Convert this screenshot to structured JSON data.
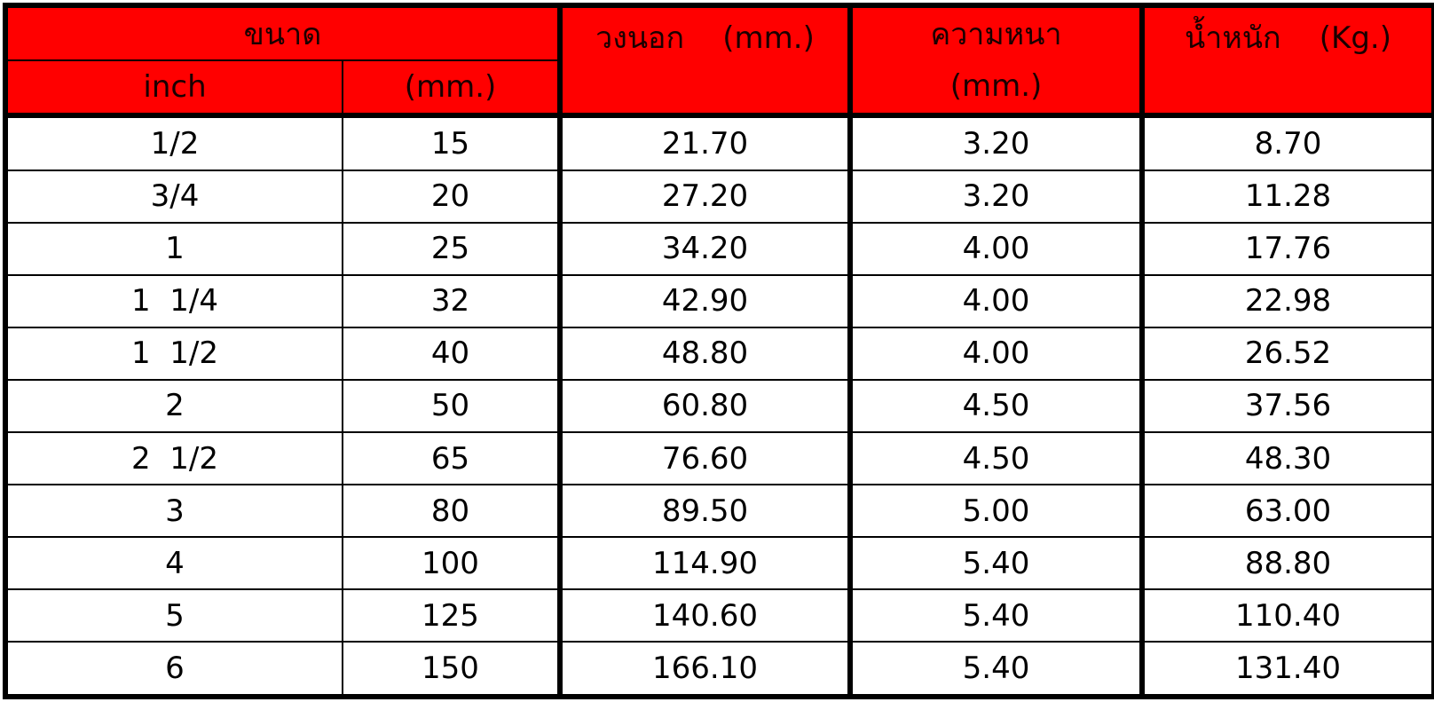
{
  "header": {
    "size": "ขนาด",
    "inch": "inch",
    "size_mm": "(mm.)",
    "outer": "วงนอก    (mm.)",
    "thickness": "ความหนา",
    "thickness_unit": "(mm.)",
    "weight": "น้ำหนัก    (Kg.)"
  },
  "table": {
    "rows": [
      [
        "1/2",
        "15",
        "21.70",
        "3.20",
        "8.70"
      ],
      [
        "3/4",
        "20",
        "27.20",
        "3.20",
        "11.28"
      ],
      [
        "1",
        "25",
        "34.20",
        "4.00",
        "17.76"
      ],
      [
        "1  1/4",
        "32",
        "42.90",
        "4.00",
        "22.98"
      ],
      [
        "1  1/2",
        "40",
        "48.80",
        "4.00",
        "26.52"
      ],
      [
        "2",
        "50",
        "60.80",
        "4.50",
        "37.56"
      ],
      [
        "2  1/2",
        "65",
        "76.60",
        "4.50",
        "48.30"
      ],
      [
        "3",
        "80",
        "89.50",
        "5.00",
        "63.00"
      ],
      [
        "4",
        "100",
        "114.90",
        "5.40",
        "88.80"
      ],
      [
        "5",
        "125",
        "140.60",
        "5.40",
        "110.40"
      ],
      [
        "6",
        "150",
        "166.10",
        "5.40",
        "131.40"
      ]
    ]
  }
}
